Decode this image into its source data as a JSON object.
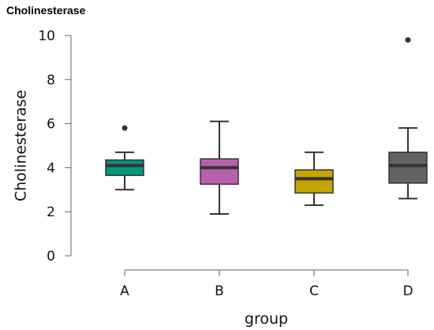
{
  "chart_data": {
    "type": "box",
    "title": "Cholinesterase",
    "xlabel": "group",
    "ylabel": "Cholinesterase",
    "ylim": [
      0,
      10
    ],
    "yticks": [
      0,
      2,
      4,
      6,
      8,
      10
    ],
    "grid": false,
    "categories": [
      "A",
      "B",
      "C",
      "D"
    ],
    "series": [
      {
        "category": "A",
        "color": "#00987a",
        "whisker_low": 3.0,
        "q1": 3.65,
        "median": 4.1,
        "q3": 4.35,
        "whisker_high": 4.7,
        "outliers": [
          5.8
        ]
      },
      {
        "category": "B",
        "color": "#b760ae",
        "whisker_low": 1.9,
        "q1": 3.25,
        "median": 4.0,
        "q3": 4.4,
        "whisker_high": 6.1,
        "outliers": []
      },
      {
        "category": "C",
        "color": "#c6a500",
        "whisker_low": 2.3,
        "q1": 2.85,
        "median": 3.5,
        "q3": 3.9,
        "whisker_high": 4.7,
        "outliers": []
      },
      {
        "category": "D",
        "color": "#636363",
        "whisker_low": 2.6,
        "q1": 3.3,
        "median": 4.1,
        "q3": 4.7,
        "whisker_high": 5.8,
        "outliers": [
          9.8
        ]
      }
    ]
  }
}
